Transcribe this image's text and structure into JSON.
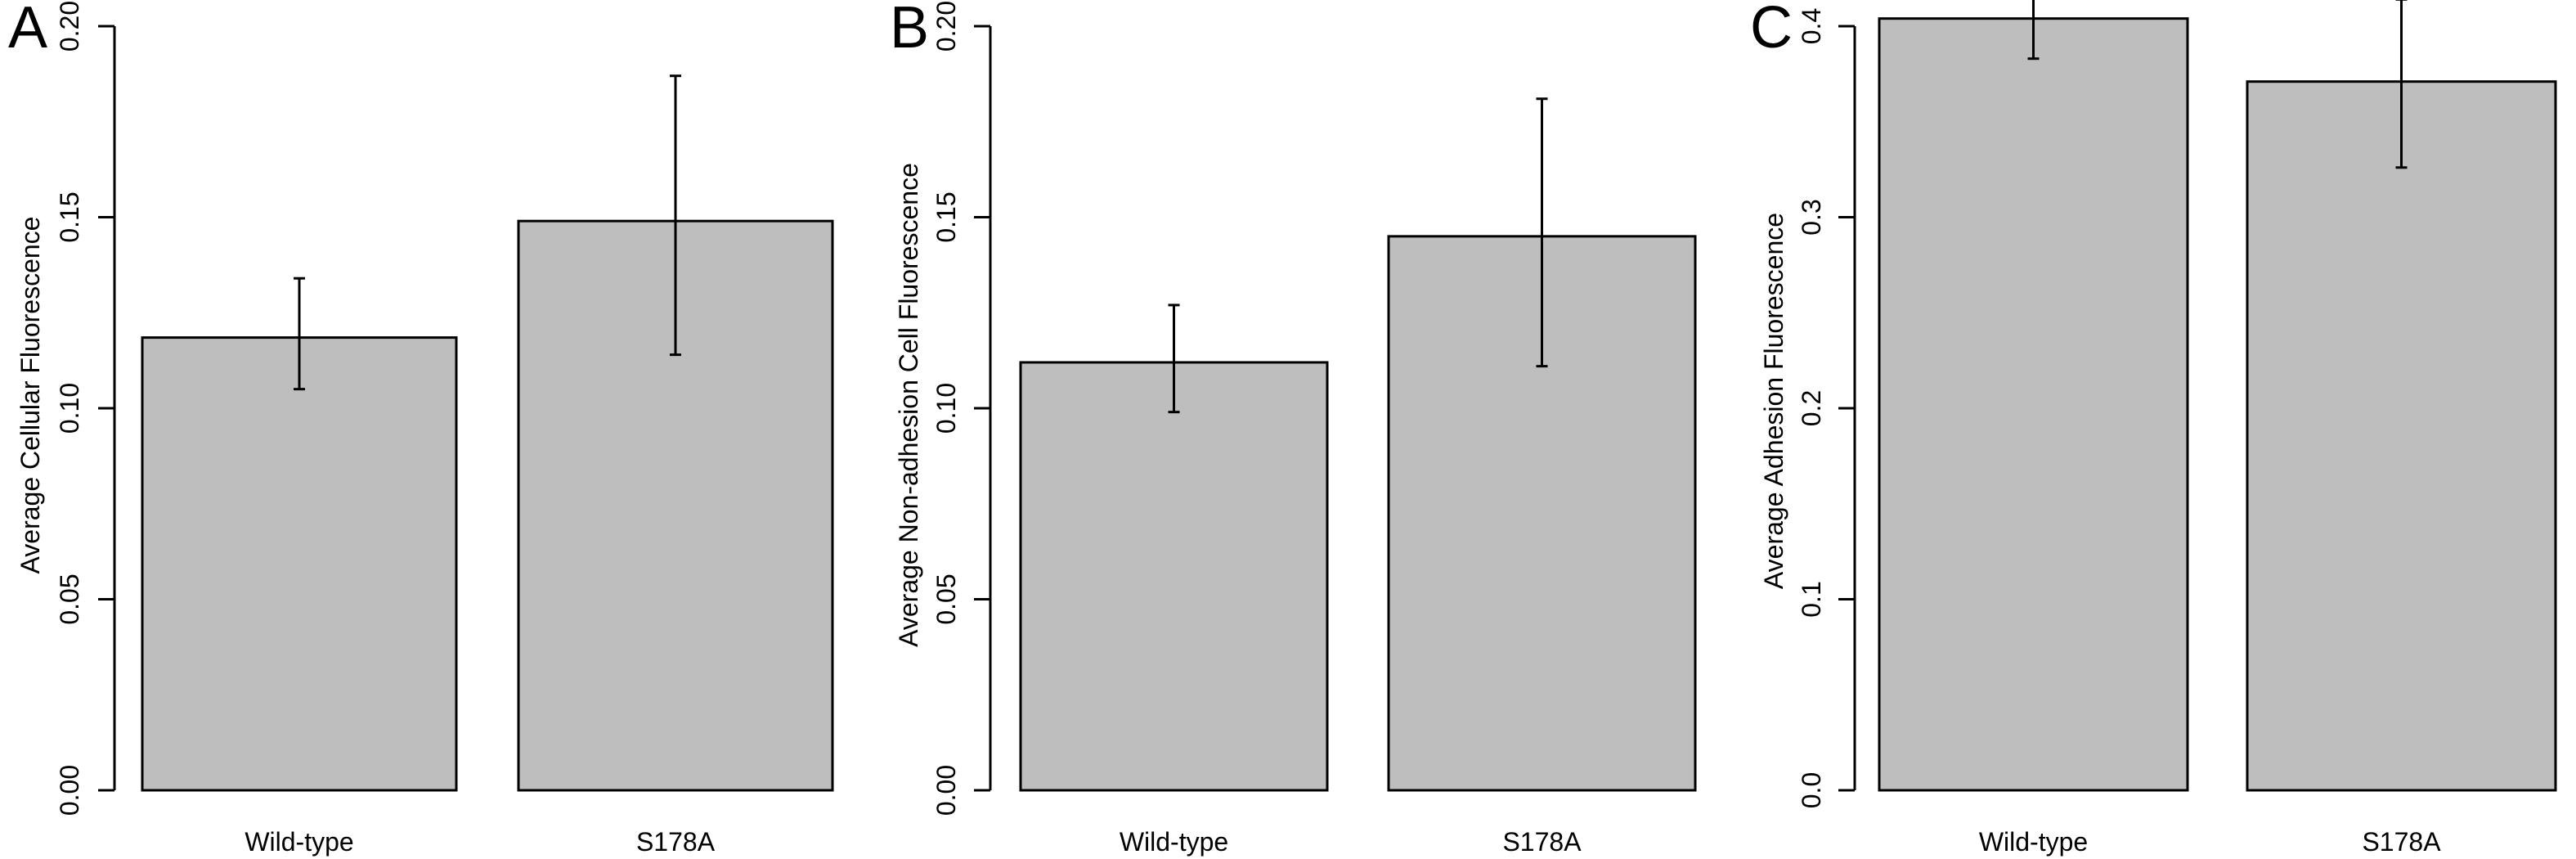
{
  "figure": {
    "panels": [
      "A",
      "B",
      "C"
    ]
  },
  "chart_data": [
    {
      "panel": "A",
      "type": "bar",
      "categories": [
        "Wild-type",
        "S178A"
      ],
      "values": [
        0.1185,
        0.149
      ],
      "error_low": [
        0.105,
        0.114
      ],
      "error_high": [
        0.134,
        0.187
      ],
      "title": "",
      "xlabel": "",
      "ylabel": "Average Cellular Fluorescence",
      "ylim": [
        0,
        0.2
      ],
      "yticks": [
        "0.00",
        "0.05",
        "0.10",
        "0.15",
        "0.20"
      ],
      "bar_color": "#bebebe",
      "grid": false
    },
    {
      "panel": "B",
      "type": "bar",
      "categories": [
        "Wild-type",
        "S178A"
      ],
      "values": [
        0.112,
        0.145
      ],
      "error_low": [
        0.099,
        0.111
      ],
      "error_high": [
        0.127,
        0.181
      ],
      "title": "",
      "xlabel": "",
      "ylabel": "Average Non-adhesion Cell Fluorescence",
      "ylim": [
        0,
        0.2
      ],
      "yticks": [
        "0.00",
        "0.05",
        "0.10",
        "0.15",
        "0.20"
      ],
      "bar_color": "#bebebe",
      "grid": false
    },
    {
      "panel": "C",
      "type": "bar",
      "categories": [
        "Wild-type",
        "S178A"
      ],
      "values": [
        0.404,
        0.371
      ],
      "error_low": [
        0.383,
        0.326
      ],
      "error_high": [
        0.425,
        0.414
      ],
      "title": "",
      "xlabel": "",
      "ylabel": "Average Adhesion Fluorescence",
      "ylim": [
        0,
        0.4
      ],
      "yticks": [
        "0.0",
        "0.1",
        "0.2",
        "0.3",
        "0.4"
      ],
      "bar_color": "#bebebe",
      "grid": false
    }
  ]
}
